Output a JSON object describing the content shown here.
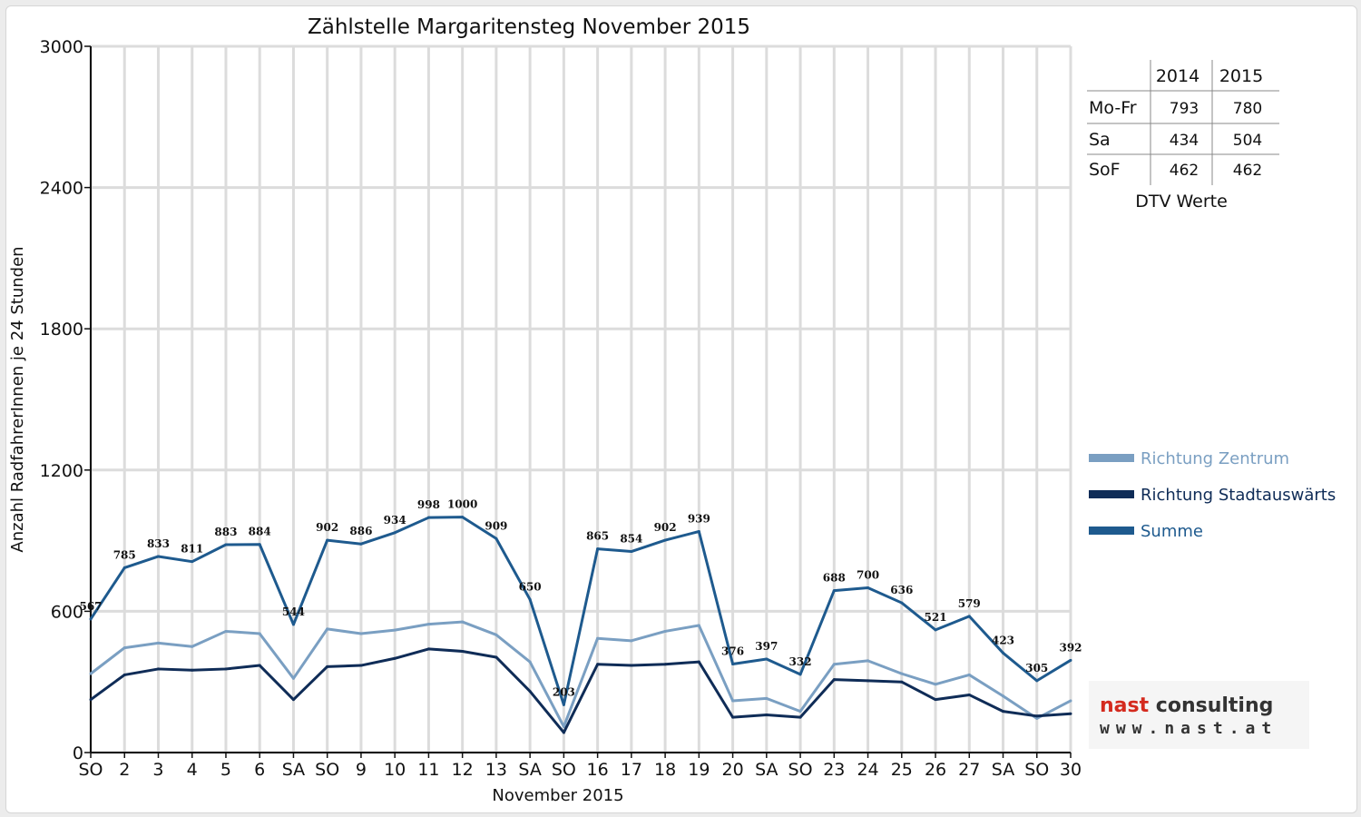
{
  "chart_data": {
    "type": "line",
    "title": "Zählstelle Margaritensteg November 2015",
    "xlabel": "November 2015",
    "ylabel": "Anzahl RadfahrerInnen je 24 Stunden",
    "ylim": [
      0,
      3000
    ],
    "yticks": [
      "0",
      "600",
      "1200",
      "1800",
      "2400",
      "3000"
    ],
    "grid": true,
    "legend_position": "right",
    "categories": [
      "SO",
      "2",
      "3",
      "4",
      "5",
      "6",
      "SA",
      "SO",
      "9",
      "10",
      "11",
      "12",
      "13",
      "SA",
      "SO",
      "16",
      "17",
      "18",
      "19",
      "20",
      "SA",
      "SO",
      "23",
      "24",
      "25",
      "26",
      "27",
      "SA",
      "SO",
      "30"
    ],
    "weekend_categories": [
      "SO"
    ],
    "weekend_color": "#e00000",
    "series": [
      {
        "name": "Richtung Zentrum",
        "color": "#7a9fc2",
        "values": [
          335,
          445,
          465,
          450,
          515,
          505,
          315,
          525,
          505,
          520,
          545,
          555,
          500,
          385,
          110,
          485,
          475,
          515,
          540,
          220,
          230,
          175,
          375,
          390,
          335,
          290,
          330,
          240,
          145,
          220
        ]
      },
      {
        "name": "Richtung Stadtauswärts",
        "color": "#0f2c57",
        "values": [
          225,
          330,
          355,
          350,
          355,
          370,
          225,
          365,
          370,
          400,
          440,
          430,
          405,
          260,
          85,
          375,
          370,
          375,
          385,
          150,
          160,
          150,
          310,
          305,
          300,
          225,
          245,
          175,
          155,
          165
        ]
      },
      {
        "name": "Summe",
        "color": "#1e5a8e",
        "values": [
          567,
          785,
          833,
          811,
          883,
          884,
          544,
          902,
          886,
          934,
          998,
          1000,
          909,
          650,
          203,
          865,
          854,
          902,
          939,
          376,
          397,
          332,
          688,
          700,
          636,
          521,
          579,
          423,
          305,
          392
        ]
      }
    ],
    "data_labels": [
      "567",
      "785",
      "833",
      "811",
      "883",
      "884",
      "544",
      "902",
      "886",
      "934",
      "998",
      "1000",
      "909",
      "650",
      "203",
      "865",
      "854",
      "902",
      "939",
      "376",
      "397",
      "332",
      "688",
      "700",
      "636",
      "521",
      "579",
      "423",
      "305",
      "392"
    ]
  },
  "dtv_table": {
    "years": [
      "2014",
      "2015"
    ],
    "rows": [
      {
        "label": "Mo-Fr",
        "v2014": "793",
        "v2015": "780"
      },
      {
        "label": "Sa",
        "v2014": "434",
        "v2015": "504"
      },
      {
        "label": "SoF",
        "v2014": "462",
        "v2015": "462"
      }
    ],
    "caption": "DTV Werte"
  },
  "logo": {
    "word1": "nast",
    "word2": "consulting",
    "word1_color": "#d42a1e",
    "word2_color": "#333333",
    "url": "www.nast.at"
  }
}
